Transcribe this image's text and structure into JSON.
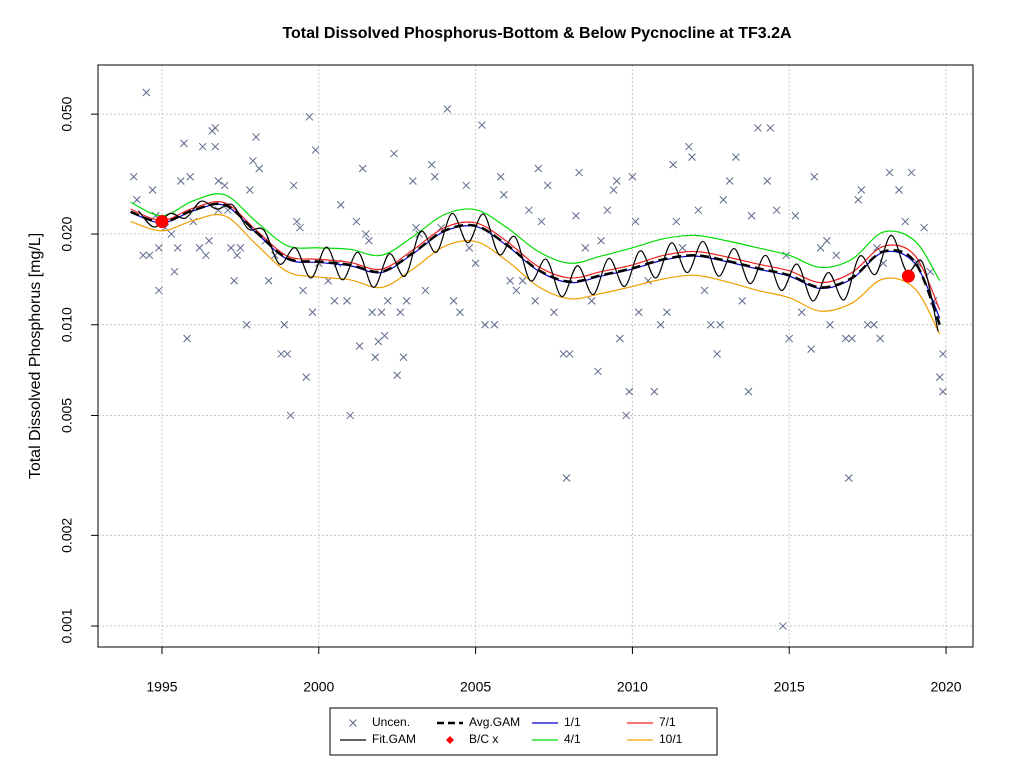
{
  "chart_data": {
    "type": "line",
    "title": "Total Dissolved Phosphorus-Bottom & Below Pycnocline at TF3.2A",
    "y_label": "Total Dissolved Phosphorus [mg/L]",
    "xlim": [
      1992.96,
      2020.86
    ],
    "ylim": [
      0.000852,
      0.0728
    ],
    "y_log": true,
    "grid": true,
    "xticks": [
      1995,
      2000,
      2005,
      2010,
      2015,
      2020
    ],
    "yticks": [
      0.001,
      0.002,
      0.005,
      {
        "value": 0.01,
        "label": "0.010"
      },
      {
        "value": 0.02,
        "label": "0.020"
      },
      {
        "value": 0.05,
        "label": "0.050"
      }
    ],
    "series": [
      {
        "name": "Uncen.",
        "mark": "x",
        "color": "#5c6a8c",
        "x": [
          1994.1,
          1994.2,
          1994.4,
          1994.5,
          1994.6,
          1994.7,
          1994.8,
          1994.9,
          1994.9,
          1995.1,
          1995.3,
          1995.4,
          1995.5,
          1995.6,
          1995.7,
          1995.8,
          1995.9,
          1996.0,
          1996.2,
          1996.3,
          1996.4,
          1996.5,
          1996.6,
          1996.7,
          1996.7,
          1996.8,
          1996.8,
          1997.0,
          1997.1,
          1997.2,
          1997.3,
          1997.4,
          1997.5,
          1997.7,
          1997.8,
          1997.9,
          1998.0,
          1998.1,
          1998.3,
          1998.4,
          1998.6,
          1998.8,
          1998.9,
          1999.0,
          1999.1,
          1999.2,
          1999.3,
          1999.4,
          1999.5,
          1999.6,
          1999.7,
          1999.8,
          1999.9,
          2000.0,
          2000.3,
          2000.5,
          2000.6,
          2000.7,
          2000.9,
          2001.0,
          2001.2,
          2001.3,
          2001.4,
          2001.5,
          2001.6,
          2001.7,
          2001.8,
          2001.9,
          2002.0,
          2002.1,
          2002.2,
          2002.4,
          2002.5,
          2002.6,
          2002.7,
          2002.8,
          2003.0,
          2003.1,
          2003.2,
          2003.4,
          2003.6,
          2003.7,
          2003.9,
          2004.1,
          2004.3,
          2004.5,
          2004.7,
          2004.8,
          2005.0,
          2005.2,
          2005.3,
          2005.6,
          2005.8,
          2005.9,
          2006.1,
          2006.3,
          2006.5,
          2006.7,
          2006.9,
          2007.0,
          2007.1,
          2007.3,
          2007.5,
          2007.8,
          2007.9,
          2008.0,
          2008.2,
          2008.3,
          2008.5,
          2008.7,
          2008.9,
          2009.0,
          2009.2,
          2009.4,
          2009.5,
          2009.6,
          2009.8,
          2009.9,
          2010.0,
          2010.1,
          2010.2,
          2010.5,
          2010.7,
          2010.9,
          2011.1,
          2011.3,
          2011.4,
          2011.6,
          2011.8,
          2011.9,
          2012.1,
          2012.3,
          2012.5,
          2012.7,
          2012.8,
          2012.9,
          2013.1,
          2013.3,
          2013.5,
          2013.7,
          2013.8,
          2014.0,
          2014.3,
          2014.4,
          2014.6,
          2014.8,
          2014.9,
          2015.0,
          2015.2,
          2015.4,
          2015.7,
          2015.8,
          2016.0,
          2016.2,
          2016.3,
          2016.5,
          2016.8,
          2016.9,
          2017.0,
          2017.2,
          2017.3,
          2017.5,
          2017.7,
          2017.8,
          2017.9,
          2018.0,
          2018.2,
          2018.5,
          2018.7,
          2018.9,
          2019.1,
          2019.3,
          2019.5,
          2019.6,
          2019.8,
          2019.9,
          2019.9
        ],
        "values": [
          0.031,
          0.026,
          0.017,
          0.059,
          0.017,
          0.028,
          0.023,
          0.018,
          0.013,
          0.021,
          0.02,
          0.015,
          0.018,
          0.03,
          0.04,
          0.009,
          0.031,
          0.022,
          0.018,
          0.039,
          0.017,
          0.019,
          0.044,
          0.045,
          0.039,
          0.024,
          0.03,
          0.029,
          0.024,
          0.018,
          0.014,
          0.017,
          0.018,
          0.01,
          0.028,
          0.035,
          0.042,
          0.033,
          0.019,
          0.014,
          0.017,
          0.008,
          0.01,
          0.008,
          0.005,
          0.029,
          0.022,
          0.021,
          0.013,
          0.0067,
          0.049,
          0.011,
          0.038,
          0.016,
          0.014,
          0.012,
          0.016,
          0.025,
          0.012,
          0.005,
          0.022,
          0.0085,
          0.033,
          0.02,
          0.019,
          0.011,
          0.0078,
          0.0088,
          0.011,
          0.0092,
          0.012,
          0.037,
          0.0068,
          0.011,
          0.0078,
          0.012,
          0.03,
          0.021,
          0.02,
          0.013,
          0.034,
          0.031,
          0.021,
          0.052,
          0.012,
          0.011,
          0.029,
          0.018,
          0.016,
          0.046,
          0.01,
          0.01,
          0.031,
          0.027,
          0.014,
          0.013,
          0.014,
          0.024,
          0.012,
          0.033,
          0.022,
          0.029,
          0.011,
          0.008,
          0.0031,
          0.008,
          0.023,
          0.032,
          0.018,
          0.012,
          0.007,
          0.019,
          0.024,
          0.028,
          0.03,
          0.009,
          0.005,
          0.006,
          0.031,
          0.022,
          0.011,
          0.014,
          0.006,
          0.01,
          0.011,
          0.034,
          0.022,
          0.018,
          0.039,
          0.036,
          0.024,
          0.013,
          0.01,
          0.008,
          0.01,
          0.026,
          0.03,
          0.036,
          0.012,
          0.006,
          0.023,
          0.045,
          0.03,
          0.045,
          0.024,
          0.001,
          0.017,
          0.009,
          0.023,
          0.011,
          0.0083,
          0.031,
          0.018,
          0.019,
          0.01,
          0.017,
          0.009,
          0.0031,
          0.009,
          0.026,
          0.028,
          0.01,
          0.01,
          0.018,
          0.009,
          0.016,
          0.032,
          0.028,
          0.022,
          0.032,
          0.016,
          0.021,
          0.015,
          0.012,
          0.0067,
          0.006,
          0.008
        ]
      },
      {
        "name": "Fit.GAM",
        "mark": "line",
        "color": "#000000",
        "x": [
          1994.25,
          1994.75,
          1995.25,
          1995.75,
          1996.25,
          1996.75,
          1997.25,
          1997.75,
          1998.25,
          1998.75,
          1999.25,
          1999.75,
          2000.25,
          2000.75,
          2001.25,
          2001.75,
          2002.25,
          2002.75,
          2003.25,
          2003.75,
          2004.25,
          2004.75,
          2005.25,
          2005.75,
          2006.25,
          2006.75,
          2007.25,
          2007.75,
          2008.25,
          2008.75,
          2009.25,
          2009.75,
          2010.25,
          2010.75,
          2011.25,
          2011.75,
          2012.25,
          2012.75,
          2013.25,
          2013.75,
          2014.25,
          2014.75,
          2015.25,
          2015.75,
          2016.25,
          2016.75,
          2017.25,
          2017.75,
          2018.25,
          2018.75,
          2019.25,
          2019.75
        ],
        "values": [
          0.0239,
          0.0211,
          0.0234,
          0.0226,
          0.0257,
          0.0242,
          0.025,
          0.0208,
          0.0206,
          0.0159,
          0.018,
          0.0143,
          0.0181,
          0.0141,
          0.0174,
          0.0133,
          0.0172,
          0.0145,
          0.0204,
          0.0174,
          0.0234,
          0.0187,
          0.0233,
          0.0171,
          0.0196,
          0.014,
          0.0165,
          0.0124,
          0.0157,
          0.0126,
          0.0166,
          0.0134,
          0.0176,
          0.0143,
          0.0187,
          0.0149,
          0.0189,
          0.0145,
          0.0179,
          0.0137,
          0.017,
          0.013,
          0.0159,
          0.012,
          0.0149,
          0.0121,
          0.0169,
          0.0147,
          0.0198,
          0.015,
          0.0161,
          0.0095
        ]
      },
      {
        "name": "Avg.GAM",
        "mark": "dashed",
        "color": "#000000",
        "x": [
          1994,
          1995,
          1996,
          1997,
          1998,
          1999,
          2000,
          2001,
          2002,
          2003,
          2004,
          2005,
          2006,
          2007,
          2008,
          2009,
          2010,
          2011,
          2012,
          2013,
          2014,
          2015,
          2016,
          2017,
          2018,
          2019,
          2019.8
        ],
        "values": [
          0.0237,
          0.0219,
          0.024,
          0.025,
          0.0203,
          0.0166,
          0.0162,
          0.0158,
          0.015,
          0.0173,
          0.0205,
          0.0213,
          0.0184,
          0.0152,
          0.0139,
          0.0146,
          0.0154,
          0.0165,
          0.017,
          0.0163,
          0.0154,
          0.0146,
          0.0133,
          0.0143,
          0.0175,
          0.0162,
          0.01
        ]
      },
      {
        "name": "B/C x",
        "mark": "point",
        "color": "#ff0000",
        "x": [
          1995.0,
          2018.8
        ],
        "values": [
          0.022,
          0.0145
        ]
      },
      {
        "name": "1/1",
        "mark": "line",
        "color": "#0000cc",
        "x": [
          1994,
          1995,
          1996,
          1997,
          1998,
          1999,
          2000,
          2001,
          2002,
          2003,
          2004,
          2005,
          2006,
          2007,
          2008,
          2009,
          2010,
          2011,
          2012,
          2013,
          2014,
          2015,
          2016,
          2017,
          2018,
          2019,
          2019.8
        ],
        "values": [
          0.0236,
          0.0218,
          0.0239,
          0.0249,
          0.0202,
          0.0165,
          0.0161,
          0.0157,
          0.0149,
          0.0172,
          0.0204,
          0.0212,
          0.0183,
          0.0151,
          0.0138,
          0.0145,
          0.0153,
          0.0164,
          0.0169,
          0.0162,
          0.0153,
          0.0145,
          0.0132,
          0.0142,
          0.0174,
          0.016,
          0.0105
        ]
      },
      {
        "name": "4/1",
        "mark": "line",
        "color": "#00dd00",
        "x": [
          1994,
          1995,
          1996,
          1997,
          1998,
          1999,
          2000,
          2001,
          2002,
          2003,
          2004,
          2005,
          2006,
          2007,
          2008,
          2009,
          2010,
          2011,
          2012,
          2013,
          2014,
          2015,
          2016,
          2017,
          2018,
          2019,
          2019.8
        ],
        "values": [
          0.0255,
          0.023,
          0.0258,
          0.027,
          0.022,
          0.0183,
          0.018,
          0.0178,
          0.017,
          0.0196,
          0.0232,
          0.0241,
          0.021,
          0.0175,
          0.016,
          0.0169,
          0.018,
          0.0193,
          0.0198,
          0.019,
          0.018,
          0.017,
          0.0155,
          0.0165,
          0.0203,
          0.019,
          0.014
        ]
      },
      {
        "name": "7/1",
        "mark": "line",
        "color": "#ee2020",
        "x": [
          1994,
          1995,
          1996,
          1997,
          1998,
          1999,
          2000,
          2001,
          2002,
          2003,
          2004,
          2005,
          2006,
          2007,
          2008,
          2009,
          2010,
          2011,
          2012,
          2013,
          2014,
          2015,
          2016,
          2017,
          2018,
          2019,
          2019.8
        ],
        "values": [
          0.0242,
          0.0222,
          0.0244,
          0.0254,
          0.0206,
          0.0169,
          0.0165,
          0.0161,
          0.0153,
          0.0177,
          0.021,
          0.0218,
          0.0189,
          0.0156,
          0.0143,
          0.015,
          0.0158,
          0.017,
          0.0175,
          0.0168,
          0.0159,
          0.0151,
          0.0138,
          0.0149,
          0.0182,
          0.017,
          0.0112
        ]
      },
      {
        "name": "10/1",
        "mark": "line",
        "color": "#f0a000",
        "x": [
          1994,
          1995,
          1996,
          1997,
          1998,
          1999,
          2000,
          2001,
          2002,
          2003,
          2004,
          2005,
          2006,
          2007,
          2008,
          2009,
          2010,
          2011,
          2012,
          2013,
          2014,
          2015,
          2016,
          2017,
          2018,
          2019,
          2019.8
        ],
        "values": [
          0.022,
          0.0205,
          0.0222,
          0.023,
          0.0185,
          0.015,
          0.0144,
          0.0141,
          0.0133,
          0.0153,
          0.0182,
          0.0189,
          0.0163,
          0.0134,
          0.0122,
          0.0127,
          0.0134,
          0.0142,
          0.0146,
          0.0139,
          0.013,
          0.0123,
          0.0111,
          0.0118,
          0.0142,
          0.0132,
          0.0093
        ]
      }
    ]
  }
}
